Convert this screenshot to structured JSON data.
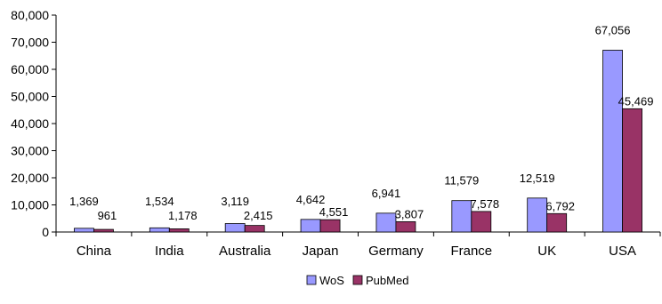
{
  "chart_data": {
    "type": "bar",
    "categories": [
      "China",
      "India",
      "Australia",
      "Japan",
      "Germany",
      "France",
      "UK",
      "USA"
    ],
    "series": [
      {
        "name": "WoS",
        "color": "#9999ff",
        "values": [
          1369,
          1534,
          3119,
          4642,
          6941,
          11579,
          12519,
          67056
        ]
      },
      {
        "name": "PubMed",
        "color": "#993366",
        "values": [
          961,
          1178,
          2415,
          4551,
          3807,
          7578,
          6792,
          45469
        ]
      }
    ],
    "data_labels": {
      "WoS": [
        "1,369",
        "1,534",
        "3,119",
        "4,642",
        "6,941",
        "11,579",
        "12,519",
        "67,056"
      ],
      "PubMed": [
        "961",
        "1,178",
        "2,415",
        "4,551",
        "3,807",
        "7,578",
        "6,792",
        "45,469"
      ]
    },
    "y_ticks": [
      "0",
      "10,000",
      "20,000",
      "30,000",
      "40,000",
      "50,000",
      "60,000",
      "70,000",
      "80,000"
    ],
    "ylim": [
      0,
      80000
    ],
    "grid": false,
    "legend": "bottom-center",
    "title": "",
    "xlabel": "",
    "ylabel": ""
  }
}
